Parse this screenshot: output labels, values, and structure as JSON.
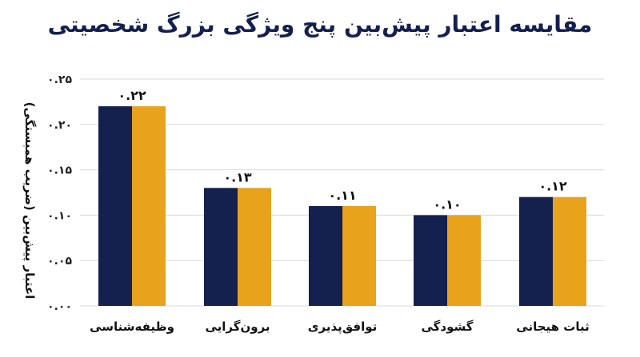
{
  "chart_data": {
    "type": "bar",
    "title": "مقایسه اعتبار پیش‌بین پنج ویژگی بزرگ شخصیتی",
    "ylabel": "اعتبار پیش‌بین (ضریب همبستگی)",
    "xlabel": "",
    "categories": [
      "وظیفه‌شناسی",
      "برون‌گرایی",
      "توافق‌پذیری",
      "گشودگی",
      "ثبات هیجانی"
    ],
    "values": [
      0.22,
      0.13,
      0.11,
      0.1,
      0.12
    ],
    "data_labels": [
      "۰.۲۲",
      "۰.۱۳",
      "۰.۱۱",
      "۰.۱۰",
      "۰.۱۲"
    ],
    "y_ticks": [
      0,
      0.05,
      0.1,
      0.15,
      0.2,
      0.25
    ],
    "y_tick_labels": [
      "۰.۰۰",
      "۰.۰۵",
      "۰.۱۰",
      "۰.۱۵",
      "۰.۲۰",
      "۰.۲۵"
    ],
    "ylim": [
      0,
      0.25
    ],
    "grid": true,
    "colors": {
      "left": "#14204e",
      "right": "#e8a21c",
      "grid": "#d9d9d9"
    }
  }
}
